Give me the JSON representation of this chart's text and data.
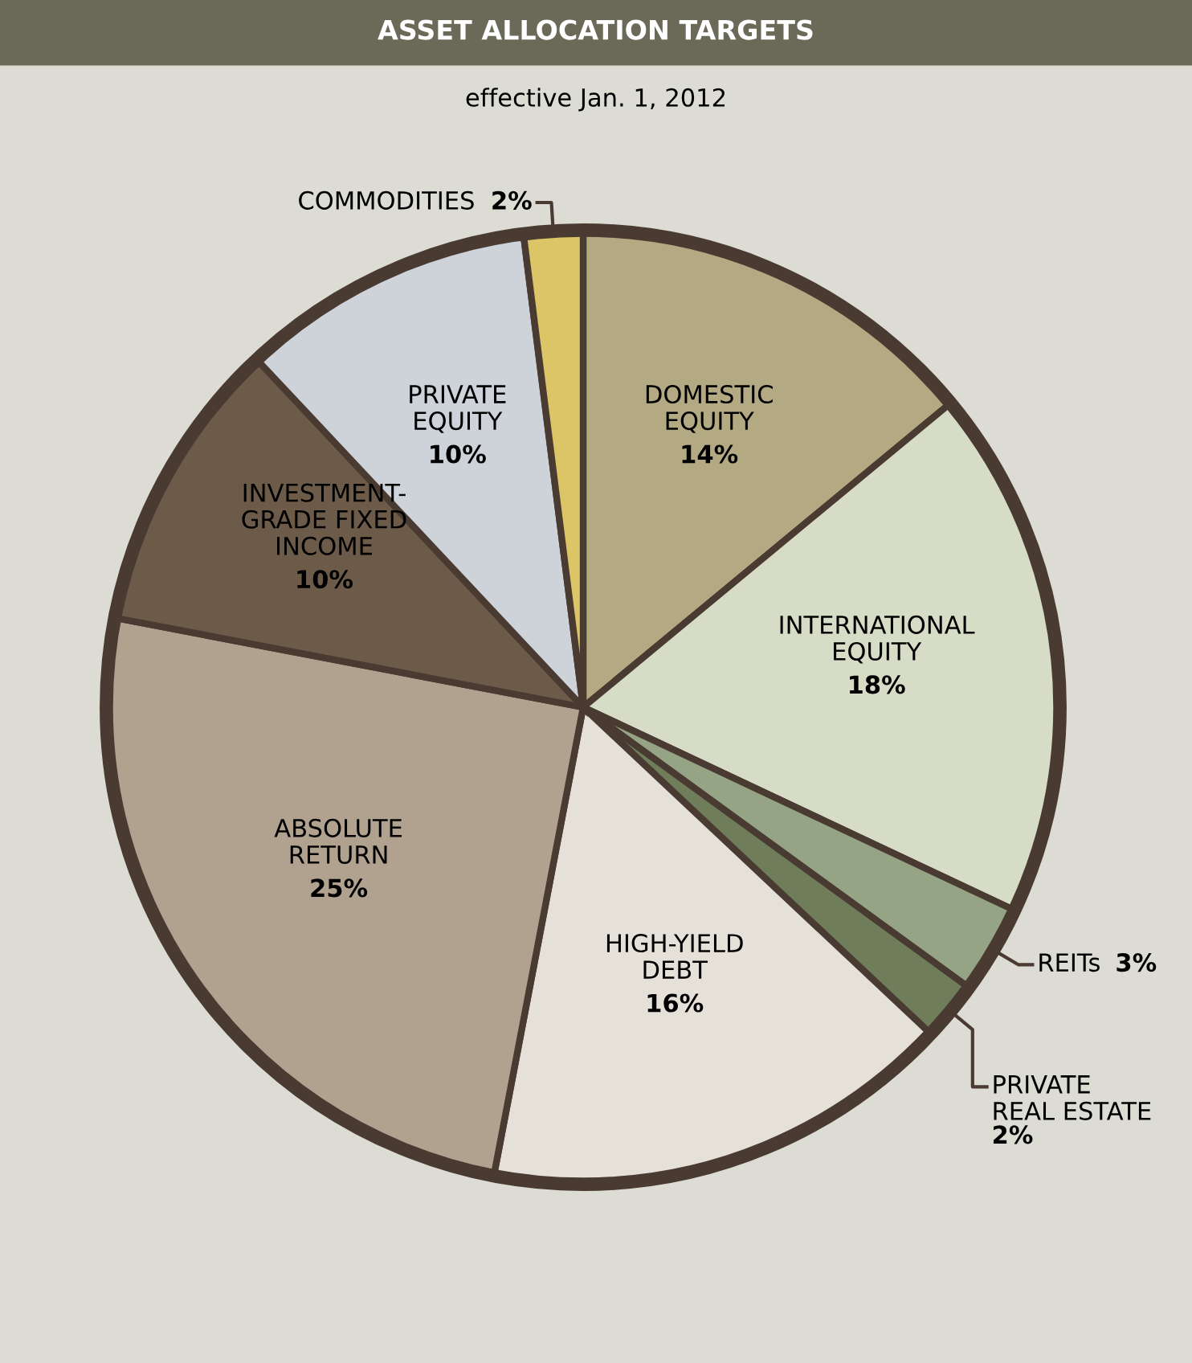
{
  "chart_data": {
    "type": "pie",
    "title": "ASSET ALLOCATION TARGETS",
    "subtitle": "effective Jan. 1, 2012",
    "categories": [
      "DOMESTIC\nEQUITY",
      "INTERNATIONAL\nEQUITY",
      "REITs",
      "PRIVATE\nREAL ESTATE",
      "HIGH-YIELD\nDEBT",
      "ABSOLUTE\nRETURN",
      "INVESTMENT-\nGRADE FIXED\nINCOME",
      "PRIVATE\nEQUITY",
      "COMMODITIES"
    ],
    "values": [
      14,
      18,
      3,
      2,
      16,
      25,
      10,
      10,
      2
    ],
    "value_labels": [
      "14%",
      "18%",
      "3%",
      "2%",
      "16%",
      "25%",
      "10%",
      "10%",
      "2%"
    ],
    "colors": [
      "#b3a983",
      "#d6dcc5",
      "#95a484",
      "#6f7d5b",
      "#e5e1d9",
      "#b1a28f",
      "#6c5b48",
      "#ced3da",
      "#dcc567"
    ],
    "legend": false
  }
}
